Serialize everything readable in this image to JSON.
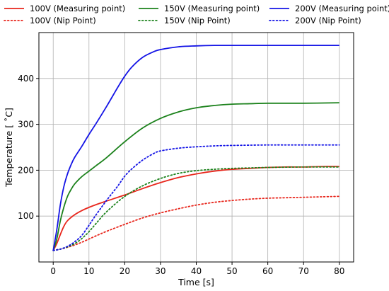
{
  "chart_data": {
    "type": "line",
    "title": "",
    "xlabel": "Time [s]",
    "ylabel": "Temperature [$^\\circ$C]",
    "ylabel_display": "Temperature [ ˚C]",
    "xlim": [
      -4,
      84
    ],
    "ylim": [
      0,
      500
    ],
    "x_ticks": [
      0,
      10,
      20,
      30,
      40,
      50,
      60,
      70,
      80
    ],
    "y_ticks": [
      100,
      200,
      300,
      400
    ],
    "grid": true,
    "legend_placement": "top, above plot, 3 columns",
    "series": [
      {
        "name": "100V (Measuring point)",
        "color": "#e8261c",
        "style": "solid",
        "x": [
          0,
          1,
          2,
          3,
          4,
          6,
          8,
          10,
          12,
          15,
          20,
          25,
          30,
          35,
          40,
          45,
          50,
          55,
          60,
          65,
          70,
          75,
          80
        ],
        "y": [
          25,
          40,
          60,
          78,
          90,
          103,
          112,
          119,
          125,
          133,
          146,
          160,
          173,
          184,
          192,
          198,
          202,
          204,
          206,
          207,
          207,
          208,
          208
        ]
      },
      {
        "name": "100V (Nip Point)",
        "color": "#e8261c",
        "style": "dotted",
        "x": [
          0,
          2,
          4,
          6,
          8,
          10,
          12,
          15,
          20,
          25,
          30,
          35,
          40,
          45,
          50,
          55,
          60,
          65,
          70,
          75,
          80
        ],
        "y": [
          25,
          28,
          32,
          37,
          43,
          50,
          57,
          67,
          82,
          96,
          107,
          116,
          124,
          130,
          134,
          137,
          139,
          140,
          141,
          142,
          143
        ]
      },
      {
        "name": "150V (Measuring point)",
        "color": "#1c821c",
        "style": "solid",
        "x": [
          0,
          1,
          2,
          3,
          4,
          5,
          6,
          8,
          10,
          12,
          15,
          20,
          25,
          30,
          35,
          40,
          45,
          50,
          55,
          60,
          70,
          80
        ],
        "y": [
          25,
          50,
          90,
          120,
          143,
          158,
          170,
          186,
          198,
          210,
          228,
          262,
          292,
          313,
          327,
          336,
          341,
          344,
          345,
          346,
          346,
          347
        ]
      },
      {
        "name": "150V (Nip Point)",
        "color": "#1c821c",
        "style": "dotted",
        "x": [
          0,
          2,
          4,
          6,
          8,
          10,
          12,
          15,
          20,
          25,
          30,
          35,
          40,
          45,
          50,
          55,
          60,
          70,
          80
        ],
        "y": [
          25,
          28,
          33,
          40,
          51,
          66,
          84,
          110,
          143,
          166,
          182,
          193,
          199,
          202,
          204,
          205,
          206,
          207,
          207
        ]
      },
      {
        "name": "200V (Measuring point)",
        "color": "#1414e6",
        "style": "solid",
        "x": [
          0,
          1,
          2,
          3,
          4,
          5,
          6,
          8,
          10,
          12,
          15,
          18,
          20,
          22,
          25,
          28,
          30,
          35,
          40,
          45,
          50,
          60,
          70,
          80
        ],
        "y": [
          25,
          70,
          125,
          165,
          192,
          212,
          228,
          252,
          278,
          302,
          340,
          380,
          405,
          425,
          446,
          458,
          463,
          469,
          471,
          472,
          472,
          472,
          472,
          472
        ]
      },
      {
        "name": "200V (Nip Point)",
        "color": "#1414e6",
        "style": "dotted",
        "x": [
          0,
          2,
          4,
          6,
          8,
          10,
          12,
          15,
          18,
          20,
          22,
          25,
          28,
          30,
          35,
          40,
          45,
          50,
          60,
          70,
          80
        ],
        "y": [
          25,
          28,
          34,
          44,
          58,
          80,
          103,
          135,
          165,
          187,
          203,
          222,
          236,
          242,
          248,
          251,
          253,
          254,
          255,
          255,
          255
        ]
      }
    ]
  }
}
